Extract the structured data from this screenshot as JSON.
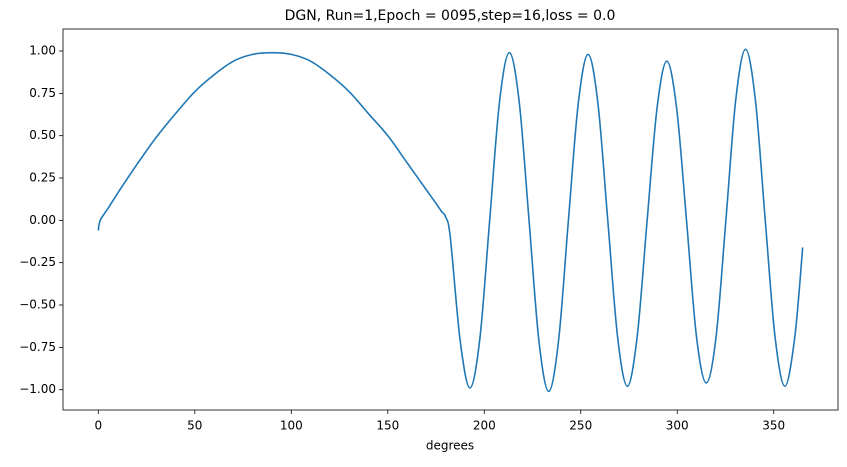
{
  "chart_data": {
    "type": "line",
    "title": "DGN, Run=1,Epoch = 0095,step=16,loss = 0.0",
    "x_label": "degrees",
    "x": [
      0,
      1,
      5,
      10,
      20,
      30,
      40,
      50,
      60,
      70,
      80,
      90,
      100,
      110,
      120,
      130,
      140,
      150,
      160,
      170,
      175,
      178,
      180,
      182.4,
      187.5,
      192.6,
      197.7,
      202.8,
      207.9,
      213.0,
      218.1,
      223.2,
      228.3,
      233.4,
      238.5,
      243.6,
      248.7,
      253.8,
      258.9,
      264.0,
      269.1,
      274.2,
      279.3,
      284.4,
      289.5,
      294.6,
      299.7,
      304.8,
      309.9,
      315.0,
      320.1,
      325.2,
      330.3,
      335.4,
      340.5,
      345.6,
      350.7,
      355.8,
      360.9,
      365
    ],
    "series": [
      {
        "name": "loss",
        "color": "#1f77b4",
        "values": [
          -0.06,
          0.0,
          0.07,
          0.16,
          0.33,
          0.49,
          0.63,
          0.76,
          0.86,
          0.94,
          0.98,
          0.99,
          0.98,
          0.94,
          0.86,
          0.76,
          0.63,
          0.5,
          0.34,
          0.18,
          0.1,
          0.05,
          0.02,
          -0.1,
          -0.71,
          -0.99,
          -0.7,
          0.0,
          0.7,
          0.99,
          0.7,
          0.0,
          -0.71,
          -1.01,
          -0.71,
          0.0,
          0.69,
          0.98,
          0.69,
          0.0,
          -0.69,
          -0.98,
          -0.68,
          0.0,
          0.66,
          0.94,
          0.66,
          0.0,
          -0.68,
          -0.96,
          -0.69,
          0.0,
          0.71,
          1.01,
          0.71,
          0.0,
          -0.69,
          -0.98,
          -0.69,
          -0.16
        ]
      }
    ],
    "xlim": [
      -18.3,
      383.3
    ],
    "ylim": [
      -1.12,
      1.13
    ],
    "xticks": [
      0,
      50,
      100,
      150,
      200,
      250,
      300,
      350
    ],
    "yticks": [
      {
        "value": -1,
        "label": "−1.00"
      },
      {
        "value": -0.75,
        "label": "−0.75"
      },
      {
        "value": -0.5,
        "label": "−0.50"
      },
      {
        "value": -0.25,
        "label": "−0.25"
      },
      {
        "value": 0,
        "label": "0.00"
      },
      {
        "value": 0.25,
        "label": "0.25"
      },
      {
        "value": 0.5,
        "label": "0.50"
      },
      {
        "value": 0.75,
        "label": "0.75"
      },
      {
        "value": 1,
        "label": "1.00"
      }
    ],
    "grid": false
  }
}
